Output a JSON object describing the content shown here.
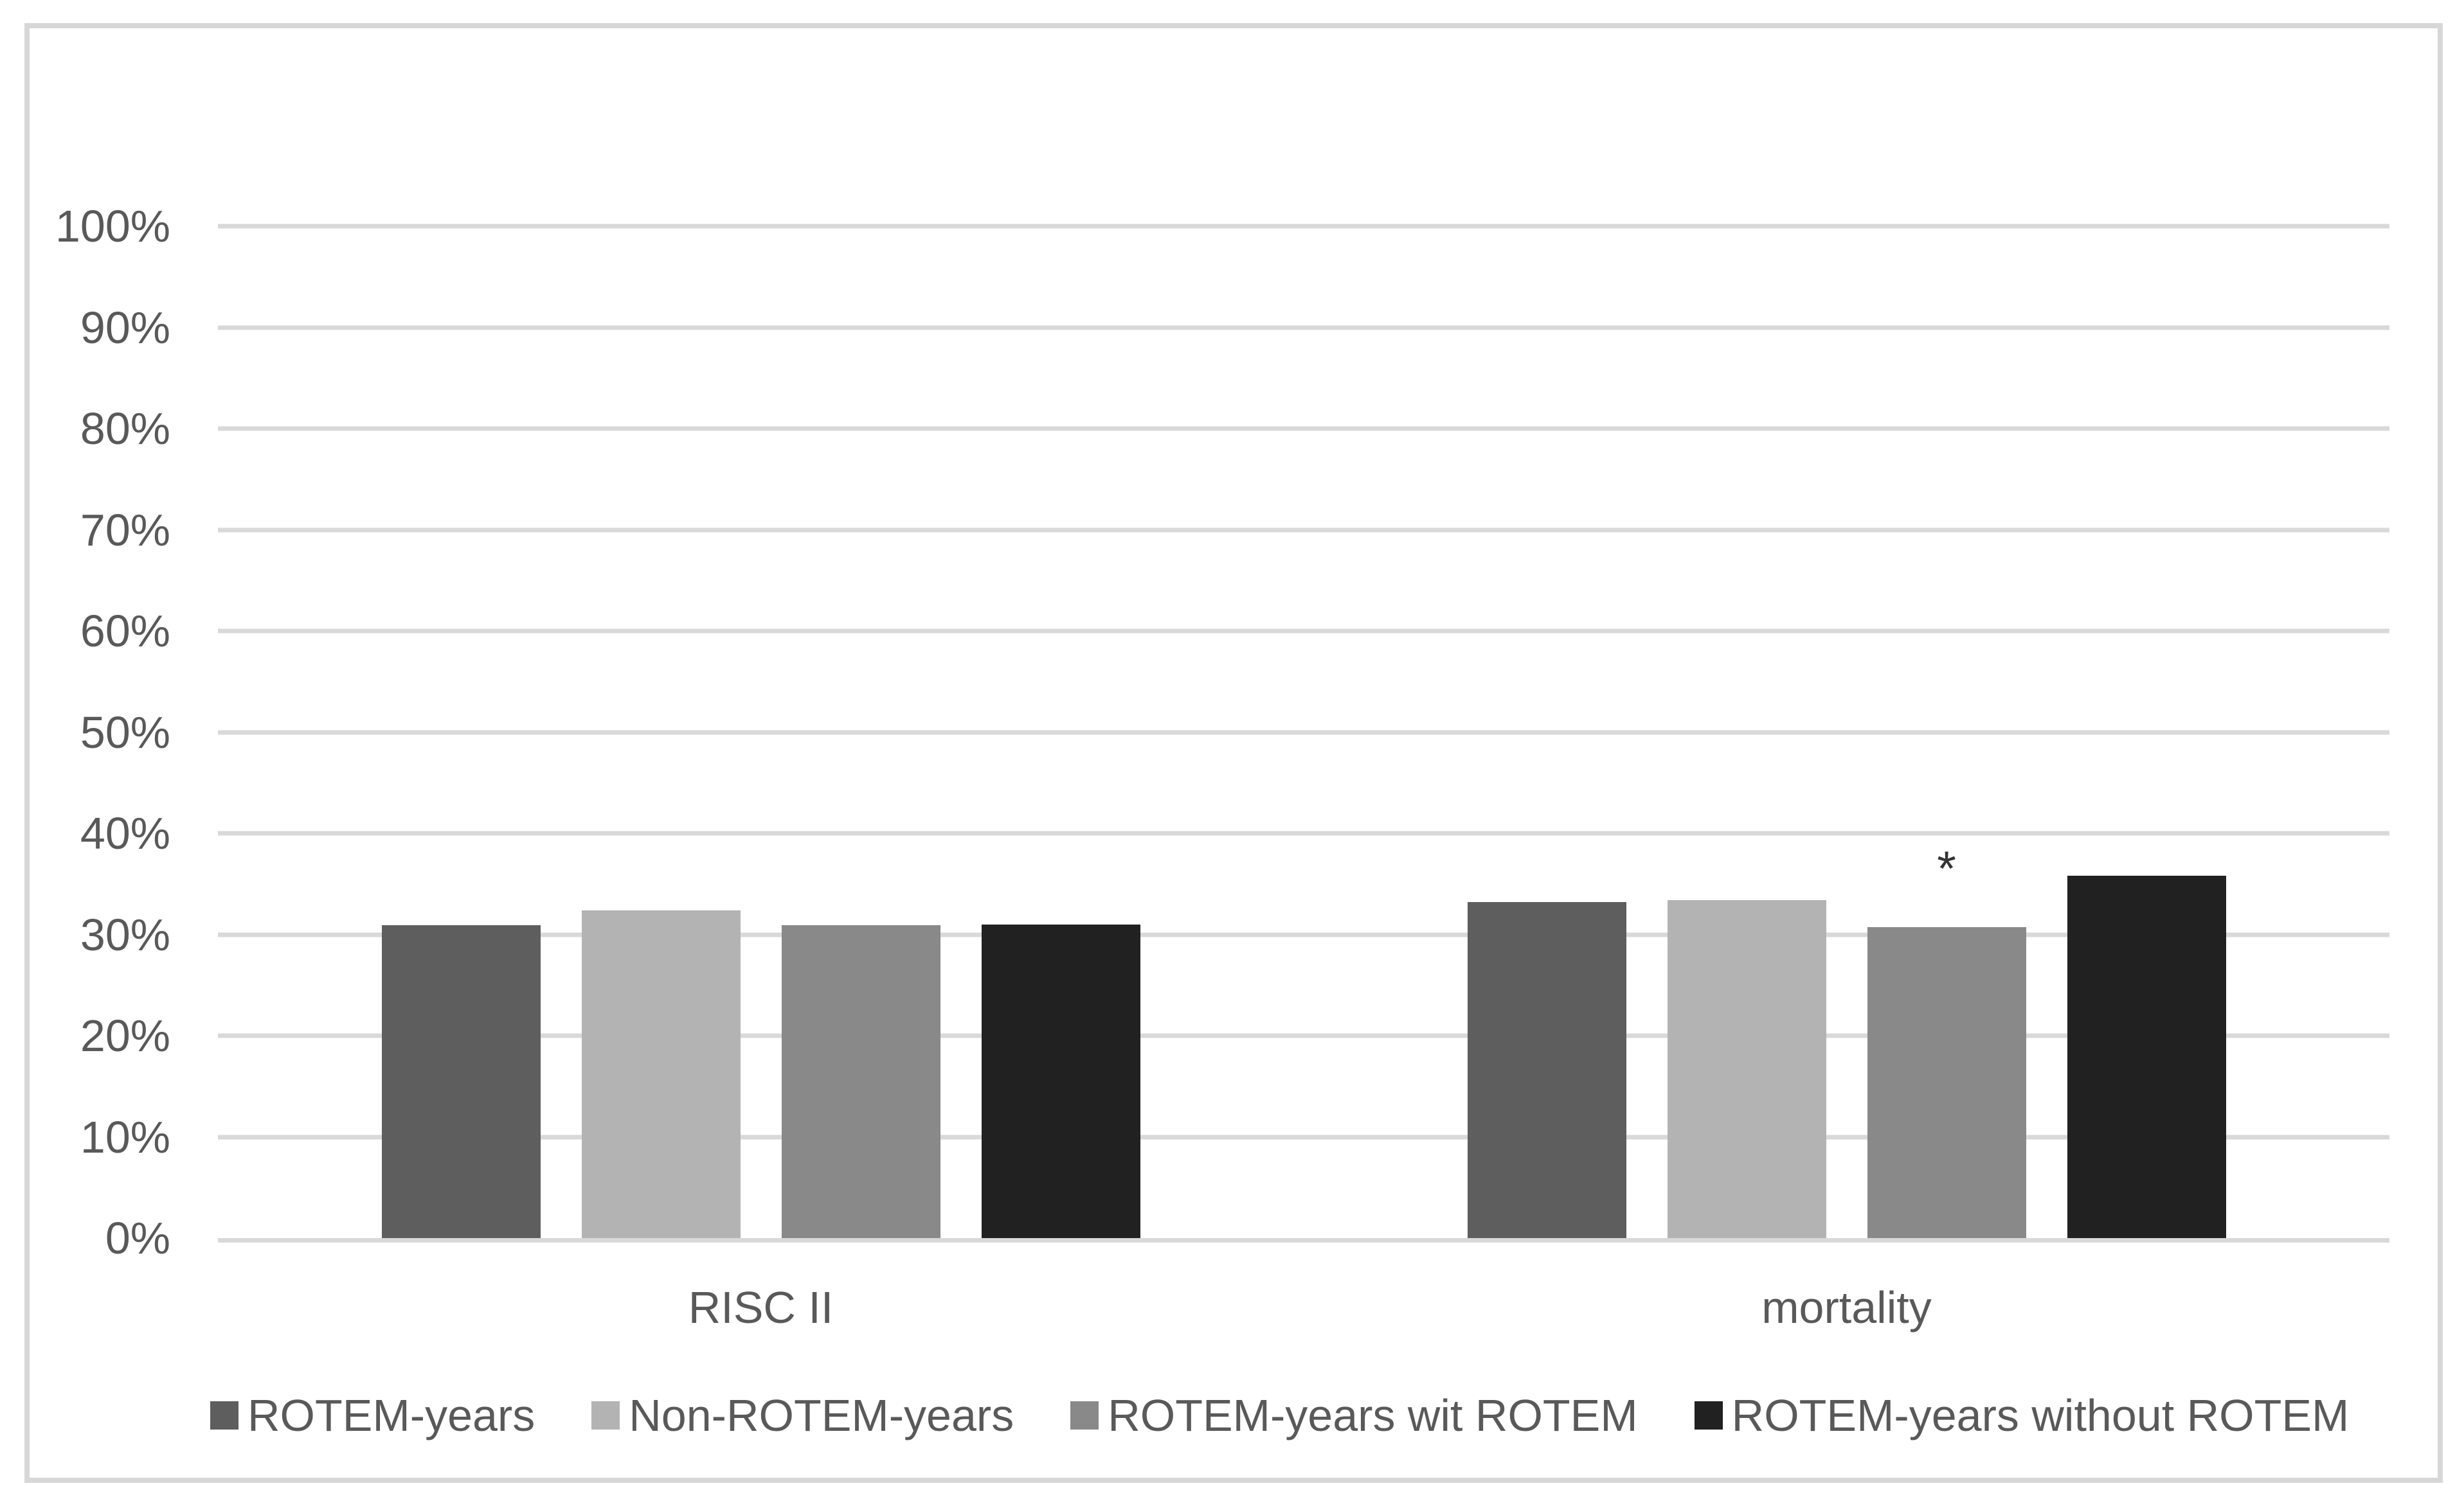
{
  "chart_data": {
    "type": "bar",
    "title": "",
    "categories": [
      "RISC II",
      "mortality"
    ],
    "series": [
      {
        "name": "ROTEM-years",
        "color": "#5e5e5e",
        "values": [
          30.9,
          33.2
        ]
      },
      {
        "name": "Non-ROTEM-years",
        "color": "#b3b3b3",
        "values": [
          32.4,
          33.4
        ]
      },
      {
        "name": "ROTEM-years wit ROTEM",
        "color": "#898989",
        "values": [
          30.9,
          30.7
        ]
      },
      {
        "name": "ROTEM-years without ROTEM",
        "color": "#212121",
        "values": [
          31.0,
          35.8
        ]
      }
    ],
    "ylim": [
      0,
      100
    ],
    "ytick_labels": [
      "0%",
      "10%",
      "20%",
      "30%",
      "40%",
      "50%",
      "60%",
      "70%",
      "80%",
      "90%",
      "100%"
    ],
    "xlabel": "",
    "ylabel": "",
    "grid": true,
    "legend_position": "bottom",
    "annotations": [
      {
        "symbol": "*",
        "category_index": 1,
        "series_index": 2
      }
    ]
  },
  "style_colors": {
    "background": "#ffffff",
    "grid": "#d9d9d9",
    "frame_border": "#d7d7d7",
    "text": "#595959",
    "annotation": "#333333"
  }
}
